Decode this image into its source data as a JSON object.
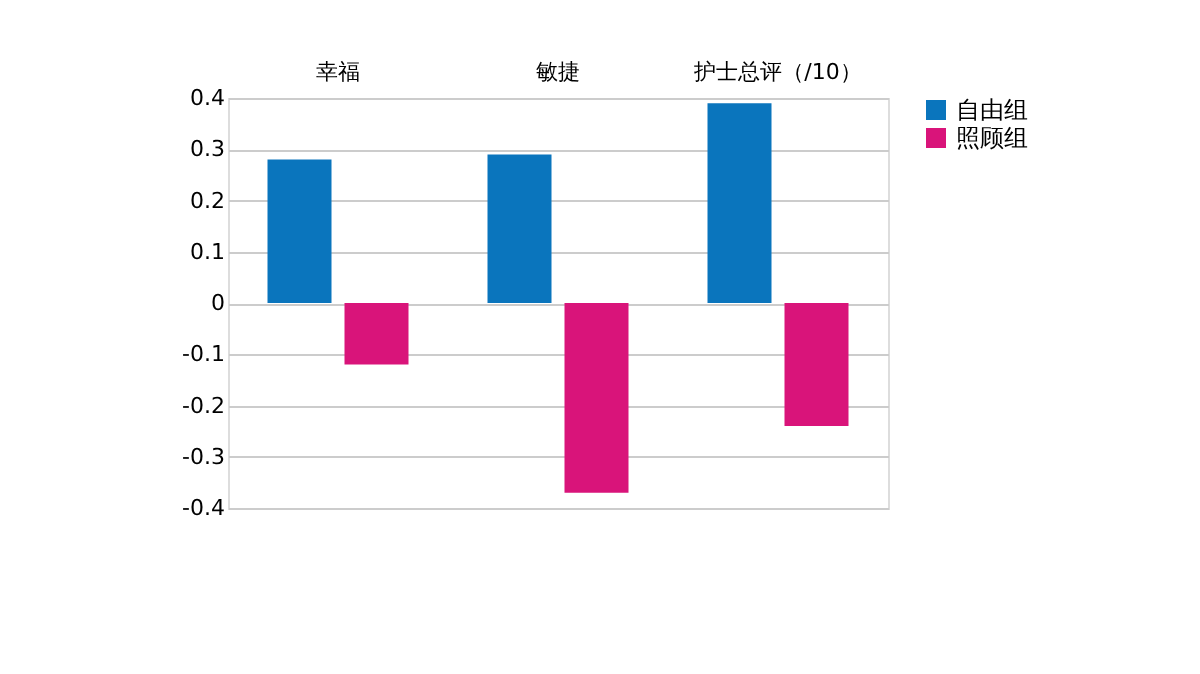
{
  "chart_data": {
    "type": "bar",
    "categories": [
      "幸福",
      "敏捷",
      "护士总评（/10）"
    ],
    "series": [
      {
        "name": "自由组",
        "color": "#0a75bd",
        "values": [
          0.28,
          0.29,
          0.39
        ]
      },
      {
        "name": "照顾组",
        "color": "#d9147a",
        "values": [
          -0.12,
          -0.37,
          -0.24
        ]
      }
    ],
    "ylim": [
      -0.4,
      0.4
    ],
    "yticks": [
      -0.4,
      -0.3,
      -0.2,
      -0.1,
      0,
      0.1,
      0.2,
      0.3,
      0.4
    ],
    "grid": "y",
    "legend": "right"
  }
}
